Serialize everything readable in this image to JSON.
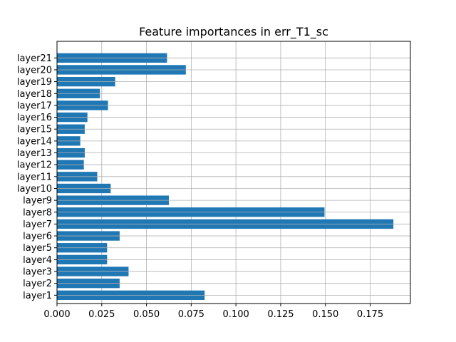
{
  "chart_data": {
    "type": "bar",
    "orientation": "horizontal",
    "title": "Feature importances in err_T1_sc",
    "xlabel": "",
    "ylabel": "",
    "categories": [
      "layer1",
      "layer2",
      "layer3",
      "layer4",
      "layer5",
      "layer6",
      "layer7",
      "layer8",
      "layer9",
      "layer10",
      "layer11",
      "layer12",
      "layer13",
      "layer14",
      "layer15",
      "layer16",
      "layer17",
      "layer18",
      "layer19",
      "layer20",
      "layer21"
    ],
    "values": [
      0.0825,
      0.035,
      0.04,
      0.028,
      0.028,
      0.035,
      0.188,
      0.1495,
      0.0625,
      0.03,
      0.0225,
      0.015,
      0.0155,
      0.013,
      0.0155,
      0.017,
      0.0285,
      0.024,
      0.0325,
      0.072,
      0.0615
    ],
    "xlim": [
      0,
      0.1975
    ],
    "xticks": [
      0.0,
      0.025,
      0.05,
      0.075,
      0.1,
      0.125,
      0.15,
      0.175
    ],
    "xtick_labels": [
      "0.000",
      "0.025",
      "0.050",
      "0.075",
      "0.100",
      "0.125",
      "0.150",
      "0.175"
    ],
    "grid": true,
    "bar_color": "#1f77b4",
    "grid_color": "#b0b0b0"
  }
}
